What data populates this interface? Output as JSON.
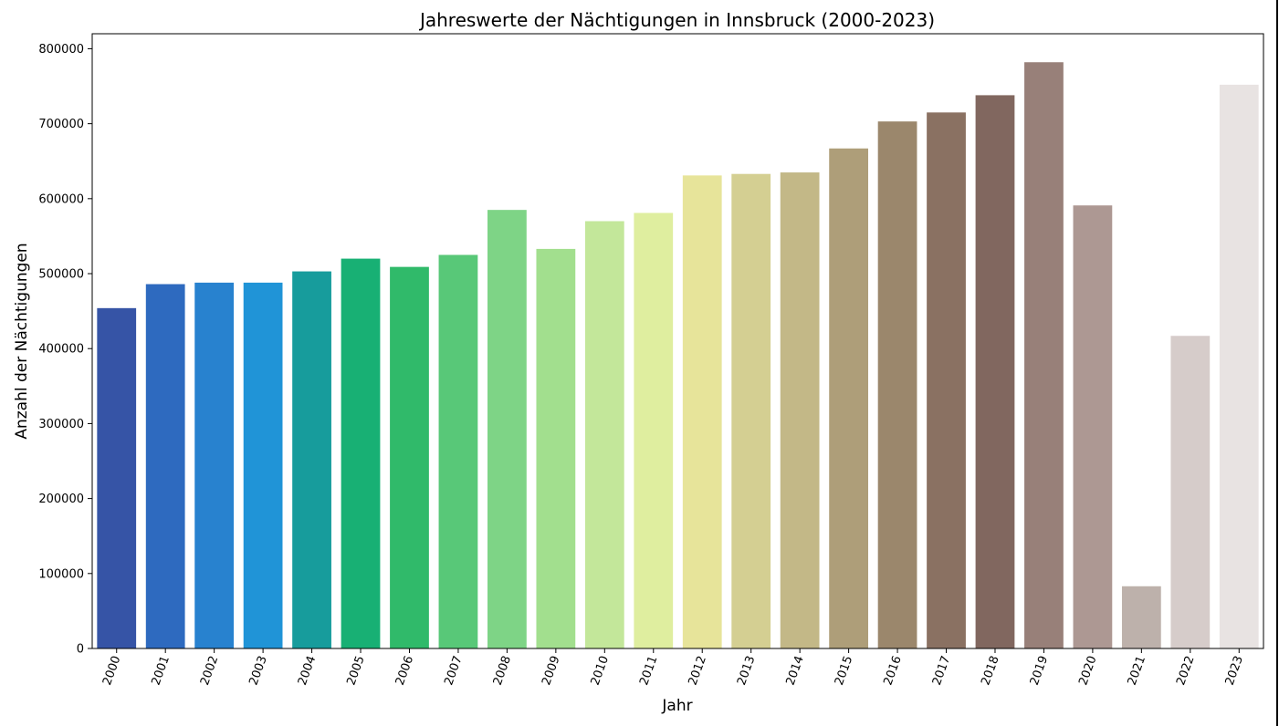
{
  "chart_data": {
    "type": "bar",
    "title": "Jahreswerte der Nächtigungen in Innsbruck (2000-2023)",
    "xlabel": "Jahr",
    "ylabel": "Anzahl der Nächtigungen",
    "ylim": [
      0,
      820000
    ],
    "yticks": [
      0,
      100000,
      200000,
      300000,
      400000,
      500000,
      600000,
      700000,
      800000
    ],
    "grid": false,
    "legend": "none",
    "categories": [
      "2000",
      "2001",
      "2002",
      "2003",
      "2004",
      "2005",
      "2006",
      "2007",
      "2008",
      "2009",
      "2010",
      "2011",
      "2012",
      "2013",
      "2014",
      "2015",
      "2016",
      "2017",
      "2018",
      "2019",
      "2020",
      "2021",
      "2022",
      "2023"
    ],
    "values": [
      454000,
      486000,
      488000,
      488000,
      503000,
      520000,
      509000,
      525000,
      585000,
      533000,
      570000,
      581000,
      631000,
      633000,
      635000,
      667000,
      703000,
      715000,
      738000,
      782000,
      591000,
      83000,
      417000,
      752000
    ],
    "colors": [
      "#3654a6",
      "#2e6abf",
      "#2882cf",
      "#2094d7",
      "#179c9c",
      "#18b074",
      "#30ba6a",
      "#58c878",
      "#7ed486",
      "#a2df8e",
      "#c3e79a",
      "#dfee9f",
      "#e7e49a",
      "#d4cf92",
      "#c3b887",
      "#ae9e79",
      "#9b876c",
      "#8a7162",
      "#81675f",
      "#988079",
      "#ad9893",
      "#bdb1ab",
      "#d6ccca",
      "#e8e3e2"
    ]
  }
}
